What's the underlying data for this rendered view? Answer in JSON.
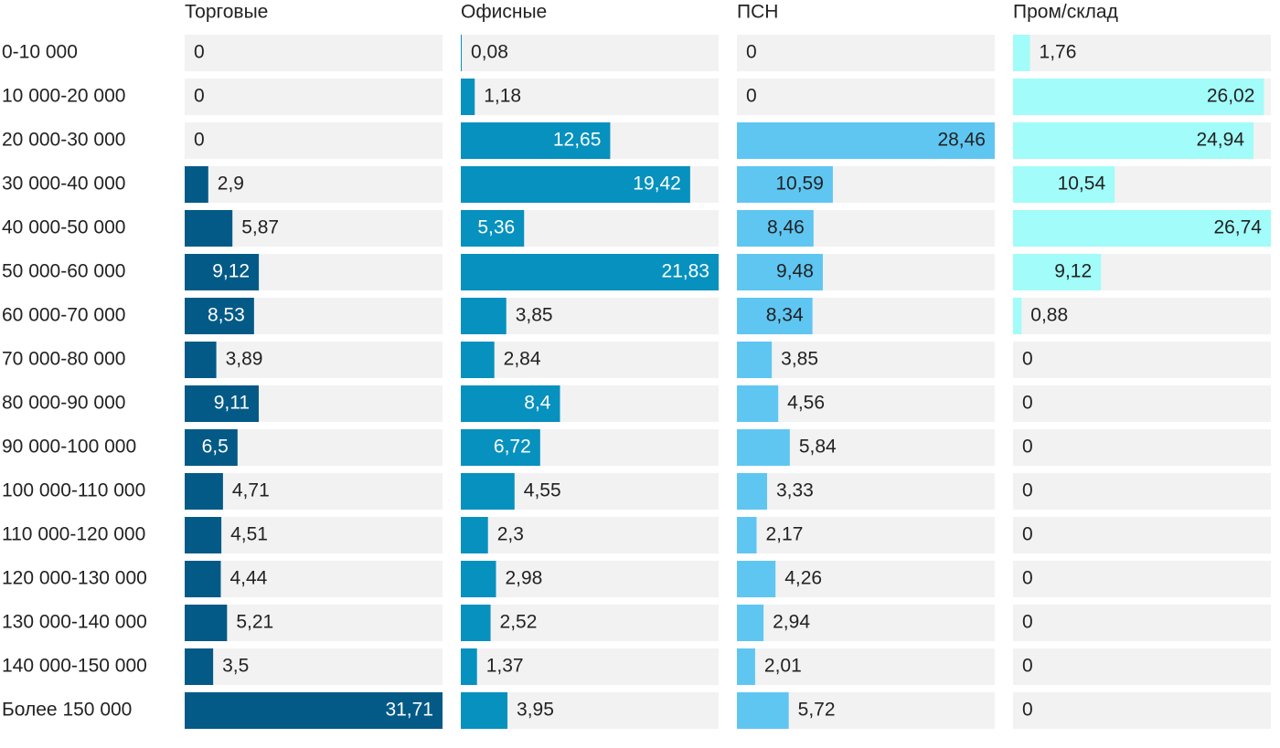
{
  "chart_data": {
    "type": "bar",
    "categories": [
      "0-10 000",
      "10 000-20 000",
      "20 000-30 000",
      "30 000-40 000",
      "40 000-50 000",
      "50 000-60 000",
      "60 000-70 000",
      "70 000-80 000",
      "80 000-90 000",
      "90 000-100 000",
      "100 000-110 000",
      "110 000-120 000",
      "120 000-130 000",
      "130 000-140 000",
      "140 000-150 000",
      "Более 150 000"
    ],
    "series": [
      {
        "name": "Торговые",
        "color": "#035a87",
        "values": [
          0,
          0,
          0,
          2.9,
          5.87,
          9.12,
          8.53,
          3.89,
          9.11,
          6.5,
          4.71,
          4.51,
          4.44,
          5.21,
          3.5,
          31.71
        ],
        "value_labels": [
          "0",
          "0",
          "0",
          "2,9",
          "5,87",
          "9,12",
          "8,53",
          "3,89",
          "9,11",
          "6,5",
          "4,71",
          "4,51",
          "4,44",
          "5,21",
          "3,5",
          "31,71"
        ]
      },
      {
        "name": "Офисные",
        "color": "#0691bf",
        "values": [
          0.08,
          1.18,
          12.65,
          19.42,
          5.36,
          21.83,
          3.85,
          2.84,
          8.4,
          6.72,
          4.55,
          2.3,
          2.98,
          2.52,
          1.37,
          3.95
        ],
        "value_labels": [
          "0,08",
          "1,18",
          "12,65",
          "19,42",
          "5,36",
          "21,83",
          "3,85",
          "2,84",
          "8,4",
          "6,72",
          "4,55",
          "2,3",
          "2,98",
          "2,52",
          "1,37",
          "3,95"
        ]
      },
      {
        "name": "ПСН",
        "color": "#5fc6f2",
        "values": [
          0,
          0,
          28.46,
          10.59,
          8.46,
          9.48,
          8.34,
          3.85,
          4.56,
          5.84,
          3.33,
          2.17,
          4.26,
          2.94,
          2.01,
          5.72
        ],
        "value_labels": [
          "0",
          "0",
          "28,46",
          "10,59",
          "8,46",
          "9,48",
          "8,34",
          "3,85",
          "4,56",
          "5,84",
          "3,33",
          "2,17",
          "4,26",
          "2,94",
          "2,01",
          "5,72"
        ]
      },
      {
        "name": "Пром/склад",
        "color": "#a2fcf9",
        "values": [
          1.76,
          26.02,
          24.94,
          10.54,
          26.74,
          9.12,
          0.88,
          0,
          0,
          0,
          0,
          0,
          0,
          0,
          0,
          0
        ],
        "value_labels": [
          "1,76",
          "26,02",
          "24,94",
          "10,54",
          "26,74",
          "9,12",
          "0,88",
          "0",
          "0",
          "0",
          "0",
          "0",
          "0",
          "0",
          "0",
          "0"
        ]
      }
    ]
  }
}
